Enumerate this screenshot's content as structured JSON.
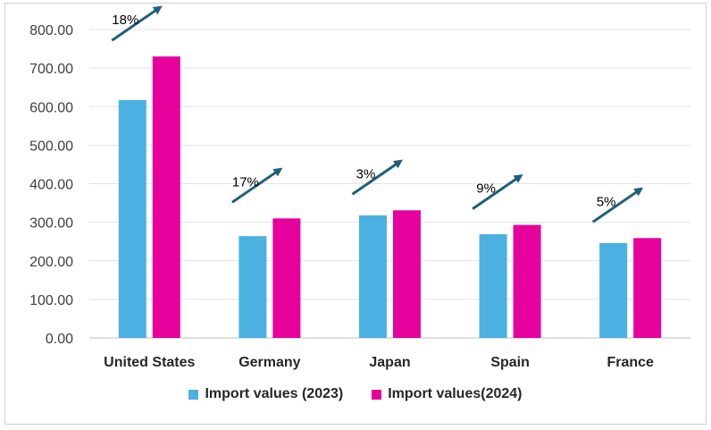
{
  "chart_data": {
    "type": "bar",
    "categories": [
      "United States",
      "Germany",
      "Japan",
      "Spain",
      "France"
    ],
    "series": [
      {
        "name": "Import values (2023)",
        "values": [
          617,
          264,
          318,
          269,
          246
        ],
        "color": "#4ab1e2"
      },
      {
        "name": "Import values(2024)",
        "values": [
          730,
          310,
          331,
          293,
          259
        ],
        "color": "#e6009c"
      }
    ],
    "growth_labels": [
      "18%",
      "17%",
      "3%",
      "9%",
      "5%"
    ],
    "ylim": [
      0,
      800
    ],
    "yticks": [
      "0.00",
      "100.00",
      "200.00",
      "300.00",
      "400.00",
      "500.00",
      "600.00",
      "700.00",
      "800.00"
    ],
    "grid": true,
    "legend": "bottom",
    "arrow_color": "#1f5f7a"
  }
}
